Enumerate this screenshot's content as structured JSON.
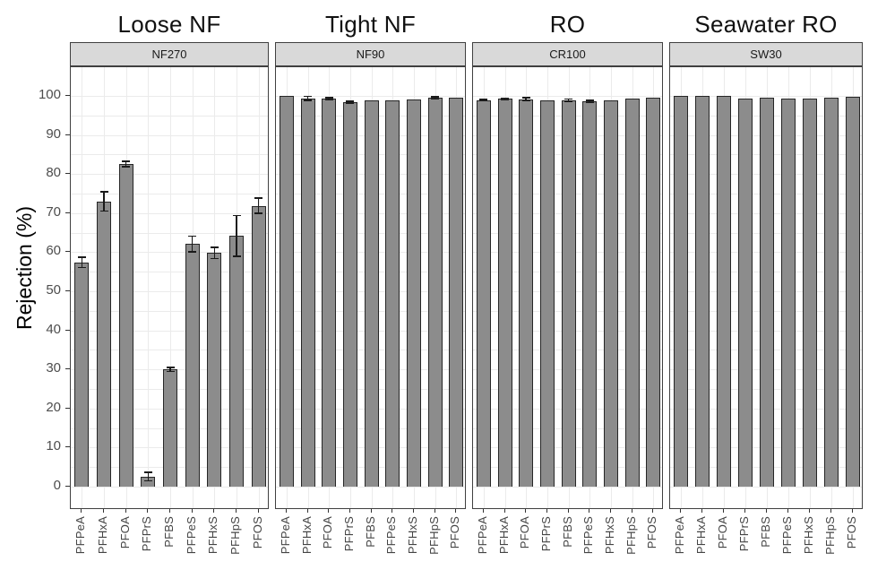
{
  "figure": {
    "ylabel": "Rejection (%)"
  },
  "chart_data": {
    "type": "bar",
    "title": "",
    "xlabel": "",
    "ylabel": "Rejection (%)",
    "ylim": [
      0,
      100
    ],
    "yticks": [
      "0",
      "10",
      "20",
      "30",
      "40",
      "50",
      "60",
      "70",
      "80",
      "90",
      "100"
    ],
    "grid": "on",
    "legend": "none",
    "categories": [
      "PFPeA",
      "PFHxA",
      "PFOA",
      "PFPrS",
      "PFBS",
      "PFPeS",
      "PFHxS",
      "PFHpS",
      "PFOS"
    ],
    "facets": [
      {
        "title": "Loose NF",
        "strip": "NF270",
        "values": [
          57.4,
          73.0,
          82.6,
          2.6,
          30.0,
          62.1,
          59.8,
          64.2,
          71.9
        ],
        "errors": [
          1.3,
          2.5,
          0.7,
          1.1,
          0.5,
          2.0,
          1.4,
          5.2,
          2.0
        ]
      },
      {
        "title": "Tight NF",
        "strip": "NF90",
        "values": [
          100.0,
          99.4,
          99.3,
          98.4,
          98.8,
          98.9,
          99.1,
          99.5,
          99.5
        ],
        "errors": [
          0,
          0.5,
          0.3,
          0.2,
          0,
          0,
          0,
          0.3,
          0
        ]
      },
      {
        "title": "RO",
        "strip": "CR100",
        "values": [
          98.9,
          99.2,
          99.1,
          98.8,
          98.9,
          98.6,
          98.9,
          99.2,
          99.6
        ],
        "errors": [
          0.2,
          0.2,
          0.4,
          0,
          0.3,
          0.3,
          0,
          0,
          0
        ]
      },
      {
        "title": "Seawater RO",
        "strip": "SW30",
        "values": [
          100.0,
          100.0,
          100.0,
          99.2,
          99.5,
          99.4,
          99.4,
          99.5,
          99.7
        ],
        "errors": [
          0,
          0,
          0,
          0,
          0,
          0,
          0,
          0,
          0
        ]
      }
    ],
    "colors": {
      "bar_fill": "#8c8c8c",
      "bar_stroke": "#262626",
      "strip_bg": "#d9d9d9",
      "strip_border": "#404040",
      "panel_border": "#404040",
      "grid_line": "#ebebeb",
      "tick_color": "#333333",
      "axis_text": "#4d4d4d",
      "title_text": "#111111"
    }
  }
}
